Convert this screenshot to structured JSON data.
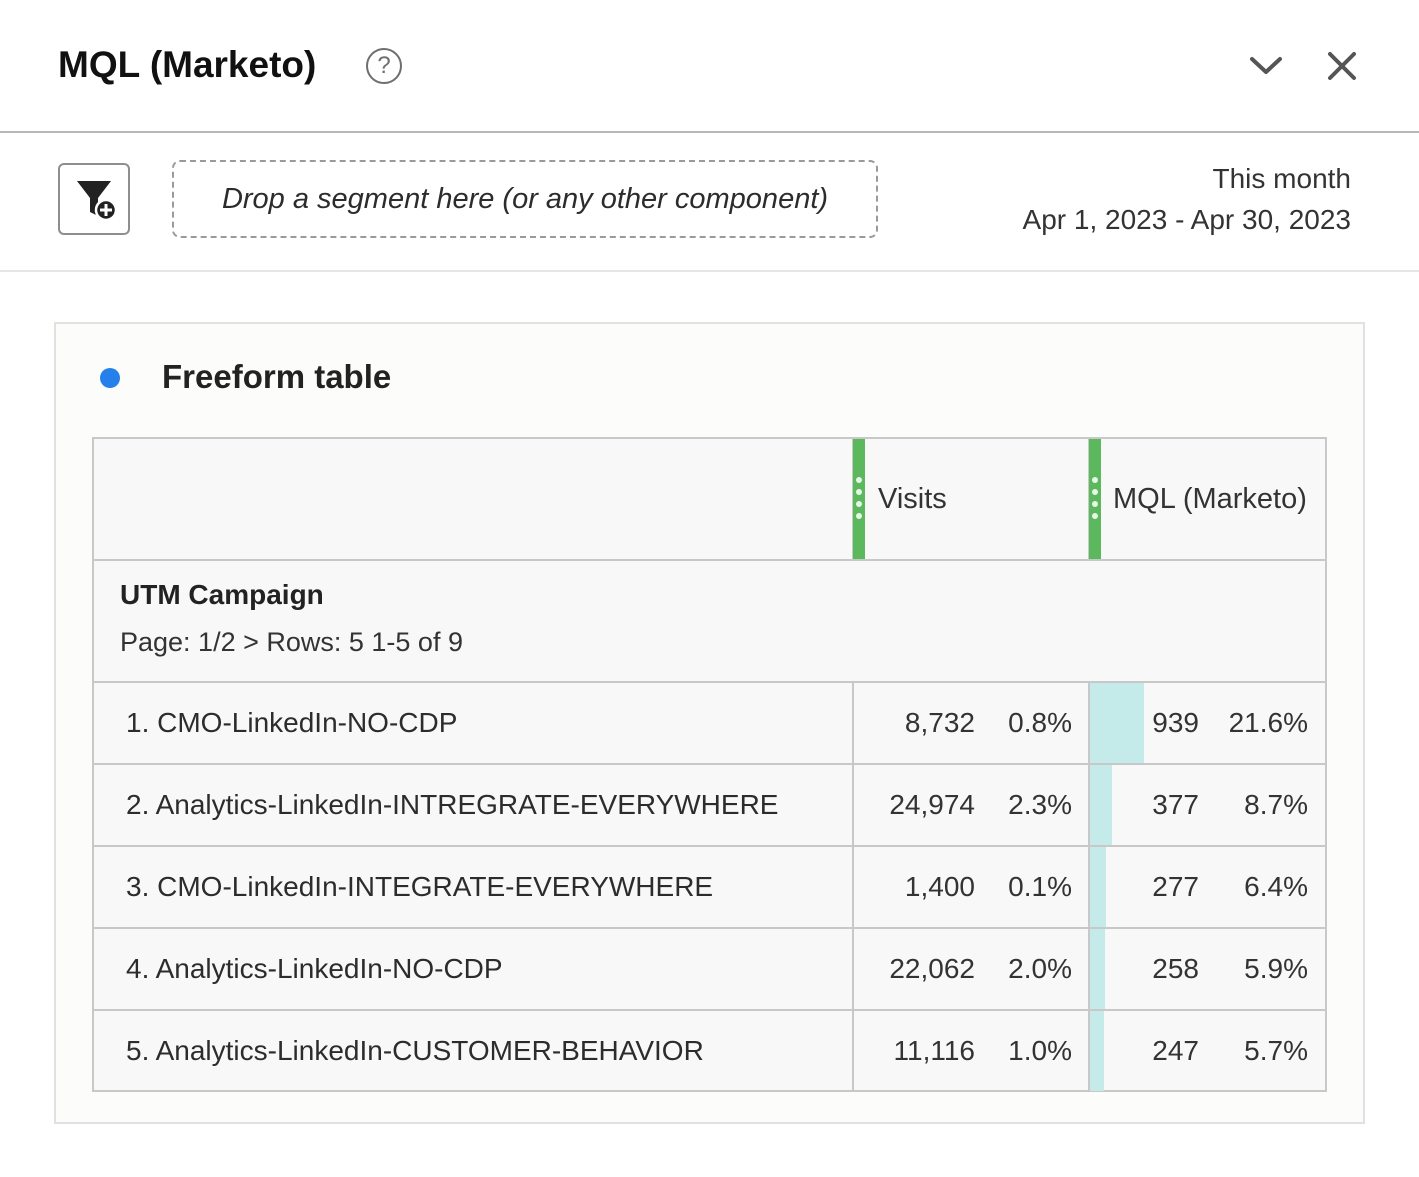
{
  "header": {
    "title": "MQL (Marketo)",
    "help_icon": "question-circle-icon",
    "chevron_icon": "chevron-down-icon",
    "close_icon": "close-icon"
  },
  "toolbar": {
    "filter_icon": "filter-add-icon",
    "dropzone_text": "Drop a segment here (or any other component)",
    "date_label": "This month",
    "date_range": "Apr 1, 2023 - Apr 30, 2023"
  },
  "panel": {
    "title": "Freeform table",
    "accent_color": "#2680eb",
    "table": {
      "columns": [
        "Visits",
        "MQL (Marketo)"
      ],
      "dimension": "UTM Campaign",
      "pagination": "Page: 1/2 > Rows: 5  1-5 of 9",
      "bar_color": "#c5eaea",
      "rows": [
        {
          "label": "1. CMO-LinkedIn-NO-CDP",
          "visits": "8,732",
          "visits_pct": "0.8%",
          "mql": "939",
          "mql_pct": "21.6%",
          "mql_value": 939
        },
        {
          "label": "2. Analytics-LinkedIn-INTREGRATE-EVERYWHERE",
          "visits": "24,974",
          "visits_pct": "2.3%",
          "mql": "377",
          "mql_pct": "8.7%",
          "mql_value": 377
        },
        {
          "label": "3. CMO-LinkedIn-INTEGRATE-EVERYWHERE",
          "visits": "1,400",
          "visits_pct": "0.1%",
          "mql": "277",
          "mql_pct": "6.4%",
          "mql_value": 277
        },
        {
          "label": "4. Analytics-LinkedIn-NO-CDP",
          "visits": "22,062",
          "visits_pct": "2.0%",
          "mql": "258",
          "mql_pct": "5.9%",
          "mql_value": 258
        },
        {
          "label": "5. Analytics-LinkedIn-CUSTOMER-BEHAVIOR",
          "visits": "11,116",
          "visits_pct": "1.0%",
          "mql": "247",
          "mql_pct": "5.7%",
          "mql_value": 247
        }
      ]
    }
  }
}
